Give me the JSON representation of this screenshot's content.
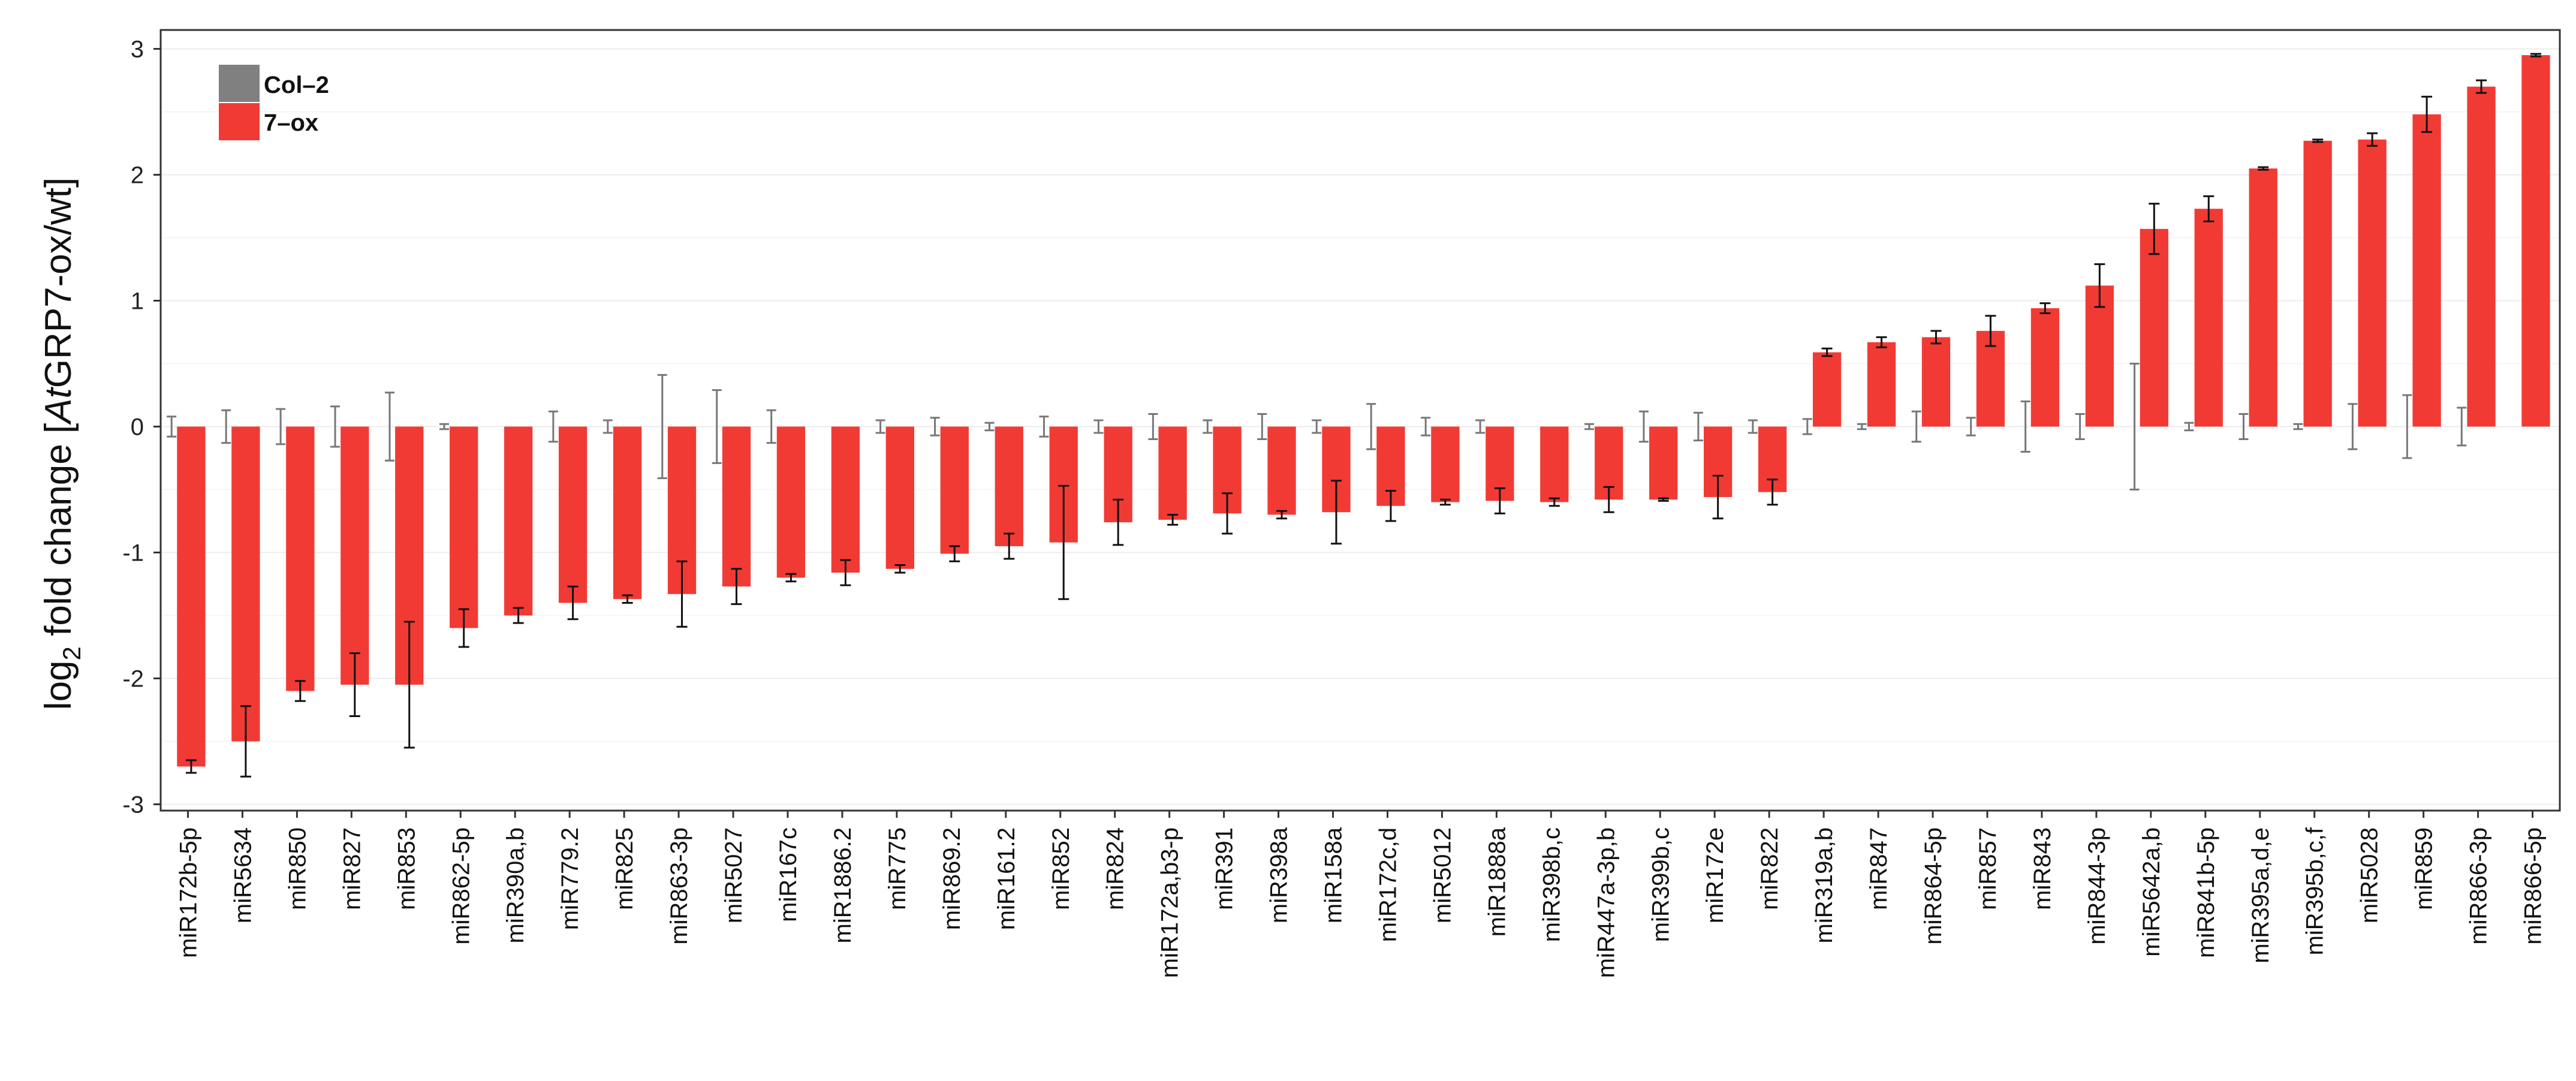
{
  "chart_data": {
    "type": "bar",
    "ylabel": {
      "prefix": "log",
      "sub": "2",
      "mid": " fold change [",
      "italic": "At",
      "suffix": "GRP7-ox/wt]"
    },
    "ylim": [
      -3.05,
      3.15
    ],
    "yticks": [
      -3,
      -2,
      -1,
      0,
      1,
      2,
      3
    ],
    "grid": true,
    "legend_position": "top-left",
    "categories": [
      "miR172b-5p",
      "miR5634",
      "miR850",
      "miR827",
      "miR853",
      "miR862-5p",
      "miR390a,b",
      "miR779.2",
      "miR825",
      "miR863-3p",
      "miR5027",
      "miR167c",
      "miR1886.2",
      "miR775",
      "miR869.2",
      "miR161.2",
      "miR852",
      "miR824",
      "miR172a,b3-p",
      "miR391",
      "miR398a",
      "miR158a",
      "miR172c,d",
      "miR5012",
      "miR1888a",
      "miR398b,c",
      "miR447a-3p,b",
      "miR399b,c",
      "miR172e",
      "miR822",
      "miR319a,b",
      "miR847",
      "miR864-5p",
      "miR857",
      "miR843",
      "miR844-3p",
      "miR5642a,b",
      "miR841b-5p",
      "miR395a,d,e",
      "miR395b,c,f",
      "miR5028",
      "miR859",
      "miR866-3p",
      "miR866-5p"
    ],
    "series": [
      {
        "name": "Col–2",
        "color": "#808080",
        "values": [
          0,
          0,
          0,
          0,
          0,
          0,
          0,
          0,
          0,
          0,
          0,
          0,
          0,
          0,
          0,
          0,
          0,
          0,
          0,
          0,
          0,
          0,
          0,
          0,
          0,
          0,
          0,
          0,
          0,
          0,
          0,
          0,
          0,
          0,
          0,
          0,
          0,
          0,
          0,
          0,
          0,
          0,
          0,
          0
        ],
        "err": [
          0.08,
          0.13,
          0.14,
          0.16,
          0.27,
          0.02,
          0.0,
          0.12,
          0.05,
          0.41,
          0.29,
          0.13,
          0.0,
          0.05,
          0.07,
          0.03,
          0.08,
          0.05,
          0.1,
          0.05,
          0.1,
          0.05,
          0.18,
          0.07,
          0.05,
          0.0,
          0.02,
          0.12,
          0.11,
          0.05,
          0.06,
          0.02,
          0.12,
          0.07,
          0.2,
          0.1,
          0.5,
          0.03,
          0.1,
          0.02,
          0.18,
          0.25,
          0.15,
          0.0
        ]
      },
      {
        "name": "7–ox",
        "color": "#f23a35",
        "values": [
          -2.7,
          -2.5,
          -2.1,
          -2.05,
          -2.05,
          -1.6,
          -1.5,
          -1.4,
          -1.37,
          -1.33,
          -1.27,
          -1.2,
          -1.16,
          -1.13,
          -1.01,
          -0.95,
          -0.92,
          -0.76,
          -0.74,
          -0.69,
          -0.7,
          -0.68,
          -0.63,
          -0.6,
          -0.59,
          -0.6,
          -0.58,
          -0.58,
          -0.56,
          -0.52,
          0.59,
          0.67,
          0.71,
          0.76,
          0.94,
          1.12,
          1.57,
          1.73,
          2.05,
          2.27,
          2.28,
          2.48,
          2.7,
          2.95
        ],
        "err": [
          0.05,
          0.28,
          0.08,
          0.25,
          0.5,
          0.15,
          0.06,
          0.13,
          0.03,
          0.26,
          0.14,
          0.03,
          0.1,
          0.03,
          0.06,
          0.1,
          0.45,
          0.18,
          0.04,
          0.16,
          0.03,
          0.25,
          0.12,
          0.02,
          0.1,
          0.03,
          0.1,
          0.01,
          0.17,
          0.1,
          0.03,
          0.04,
          0.05,
          0.12,
          0.04,
          0.17,
          0.2,
          0.1,
          0.01,
          0.01,
          0.05,
          0.14,
          0.05,
          0.01
        ]
      }
    ]
  }
}
